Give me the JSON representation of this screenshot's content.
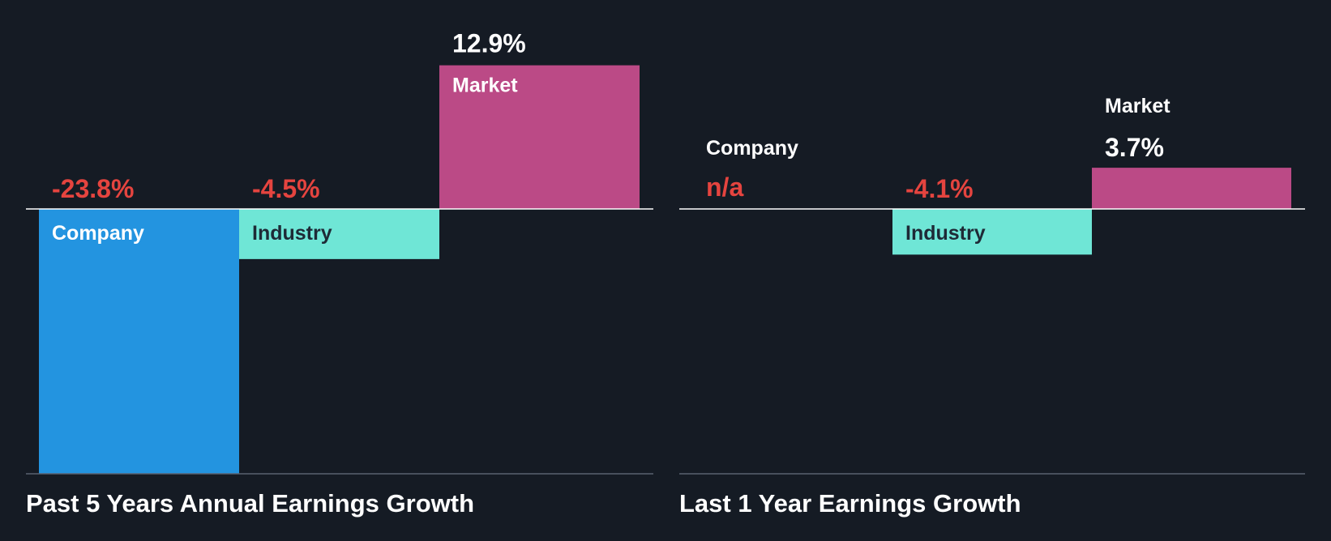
{
  "colors": {
    "background": "#151b24",
    "company": "#2394e0",
    "industry": "#6fe6d6",
    "market": "#bb4a86",
    "negative_text": "#e5443f",
    "positive_text": "#ffffff"
  },
  "chart_data": [
    {
      "type": "bar",
      "title": "Past 5 Years Annual Earnings Growth",
      "categories": [
        "Company",
        "Industry",
        "Market"
      ],
      "values": [
        -23.8,
        -4.5,
        12.9
      ],
      "value_labels": [
        "-23.8%",
        "-4.5%",
        "12.9%"
      ],
      "unit": "%",
      "grid": false,
      "legend": "none"
    },
    {
      "type": "bar",
      "title": "Last 1 Year Earnings Growth",
      "categories": [
        "Company",
        "Industry",
        "Market"
      ],
      "values": [
        null,
        -4.1,
        3.7
      ],
      "value_labels": [
        "n/a",
        "-4.1%",
        "3.7%"
      ],
      "unit": "%",
      "grid": false,
      "legend": "none"
    }
  ]
}
